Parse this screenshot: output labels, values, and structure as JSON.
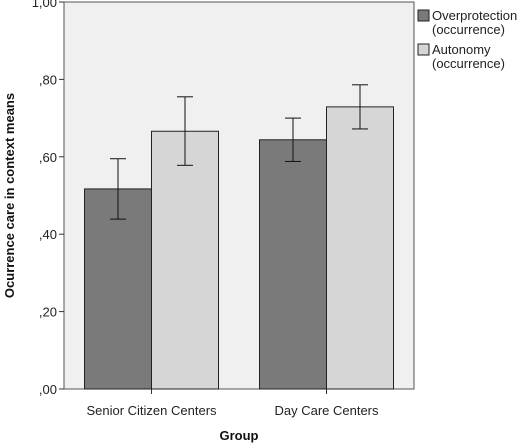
{
  "chart_data": {
    "type": "bar",
    "title": "",
    "xlabel": "Group",
    "ylabel": "Ocurrence care in context means",
    "categories": [
      "Senior Citizen Centers",
      "Day Care Centers"
    ],
    "series": [
      {
        "name": "Overprotection (occurrence)",
        "name_lines": [
          "Overprotection",
          "(occurrence)"
        ],
        "color": "#7a7a7a",
        "values": [
          0.517,
          0.644
        ],
        "error_low": [
          0.439,
          0.588
        ],
        "error_high": [
          0.595,
          0.7
        ]
      },
      {
        "name": "Autonomy (occurrence)",
        "name_lines": [
          "Autonomy",
          "(occurrence)"
        ],
        "color": "#d6d6d6",
        "values": [
          0.666,
          0.729
        ],
        "error_low": [
          0.578,
          0.672
        ],
        "error_high": [
          0.755,
          0.786
        ]
      }
    ],
    "ylim": [
      0,
      1.0
    ],
    "yticks": [
      0,
      0.2,
      0.4,
      0.6,
      0.8,
      1.0
    ],
    "ytick_labels": [
      ",00",
      ",20",
      ",40",
      ",60",
      ",80",
      "1,00"
    ],
    "error_bars": true,
    "grid": false,
    "legend_position": "right",
    "plot_background": "#f0f0f0"
  }
}
